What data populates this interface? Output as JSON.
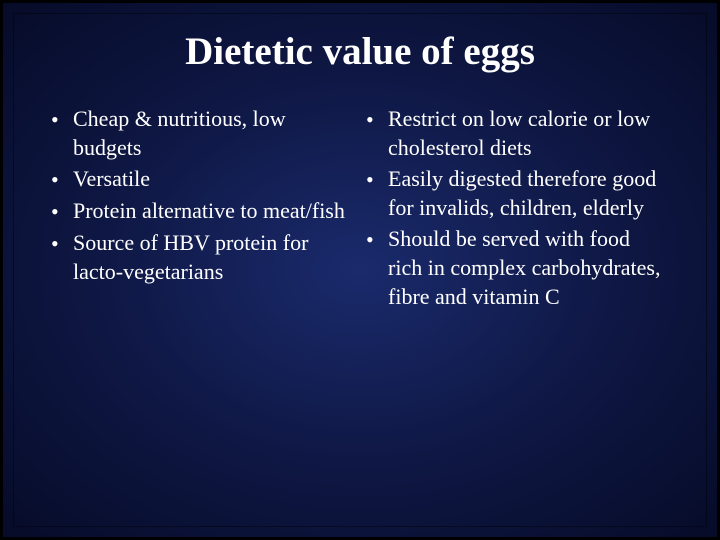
{
  "slide": {
    "title": "Dietetic value of eggs",
    "background_gradient": [
      "#1a2a6c",
      "#0f1845",
      "#060b28"
    ],
    "text_color": "#ffffff",
    "title_fontsize": 39,
    "body_fontsize": 22,
    "font_family": "Comic Sans MS",
    "bullet_char": "•",
    "left_bullets": [
      "Cheap & nutritious, low budgets",
      "Versatile",
      "Protein alternative to meat/fish",
      "Source of HBV protein for lacto-vegetarians"
    ],
    "right_bullets": [
      "Restrict on low calorie or low cholesterol diets",
      "Easily digested therefore good for invalids, children, elderly",
      "Should be served with food rich in complex carbohydrates, fibre and vitamin C"
    ]
  }
}
